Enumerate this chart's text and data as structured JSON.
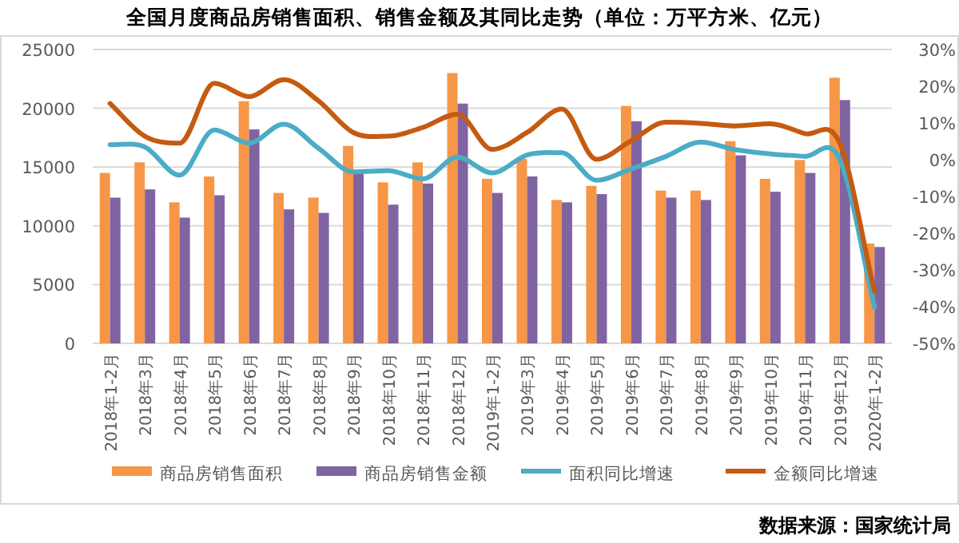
{
  "chart_data": {
    "type": "bar",
    "title": "全国月度商品房销售面积、销售金额及其同比走势（单位：万平方米、亿元）",
    "categories": [
      "2018年1-2月",
      "2018年3月",
      "2018年4月",
      "2018年5月",
      "2018年6月",
      "2018年7月",
      "2018年8月",
      "2018年9月",
      "2018年10月",
      "2018年11月",
      "2018年12月",
      "2019年1-2月",
      "2019年3月",
      "2019年4月",
      "2019年5月",
      "2019年6月",
      "2019年7月",
      "2019年8月",
      "2019年9月",
      "2019年10月",
      "2019年11月",
      "2019年12月",
      "2020年1-2月"
    ],
    "series": [
      {
        "name": "商品房销售面积",
        "color": "#f79646",
        "values": [
          14500,
          15400,
          12000,
          14200,
          20600,
          12800,
          12400,
          16800,
          13700,
          15400,
          23000,
          14000,
          15700,
          12200,
          13400,
          20200,
          13000,
          13000,
          17200,
          14000,
          15600,
          22600,
          8500
        ]
      },
      {
        "name": "商品房销售金额",
        "color": "#8064a2",
        "values": [
          12400,
          13100,
          10700,
          12600,
          18200,
          11400,
          11100,
          14700,
          11800,
          13600,
          20400,
          12800,
          14200,
          12000,
          12700,
          18900,
          12400,
          12200,
          16000,
          12900,
          14500,
          20700,
          8200
        ]
      },
      {
        "name": "面积同比增速",
        "type": "line",
        "axis": "y2",
        "color": "#4bacc6",
        "values": [
          4.1,
          3.5,
          -4.2,
          8.1,
          4.5,
          9.7,
          3.1,
          -3.3,
          -3.0,
          -5.2,
          0.7,
          -3.6,
          1.3,
          1.9,
          -5.6,
          -2.5,
          0.9,
          4.8,
          2.7,
          1.6,
          0.9,
          0.1,
          -40.2
        ]
      },
      {
        "name": "金额同比增速",
        "type": "line",
        "axis": "y2",
        "color": "#c55a11",
        "values": [
          15.3,
          6.4,
          4.5,
          20.8,
          17.2,
          21.8,
          16.0,
          7.4,
          6.4,
          8.8,
          12.4,
          2.8,
          7.4,
          13.8,
          0.1,
          5.2,
          10.2,
          9.9,
          9.2,
          9.8,
          7.1,
          4.5,
          -35.9
        ]
      }
    ],
    "ylim": [
      0,
      25000
    ],
    "yticks": [
      0,
      5000,
      10000,
      15000,
      20000,
      25000
    ],
    "y2lim": [
      -50,
      30
    ],
    "y2ticks": [
      {
        "value": 30,
        "label": "30%"
      },
      {
        "value": 20,
        "label": "20%"
      },
      {
        "value": 10,
        "label": "10%"
      },
      {
        "value": 0,
        "label": "0%"
      },
      {
        "value": -10,
        "label": "-10%"
      },
      {
        "value": -20,
        "label": "-20%"
      },
      {
        "value": -30,
        "label": "-30%"
      },
      {
        "value": -40,
        "label": "-40%"
      },
      {
        "value": -50,
        "label": "-50%"
      }
    ],
    "grid": "y",
    "legend": "bottom",
    "annotations": [
      "数据来源：国家统计局"
    ]
  }
}
